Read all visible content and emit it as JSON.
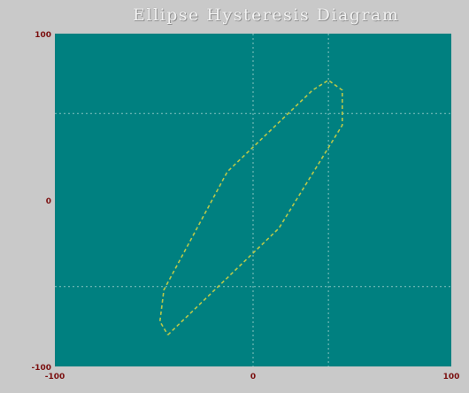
{
  "chart_data": {
    "type": "line",
    "title": "Ellipse Hysteresis Diagram",
    "xlim": [
      -100,
      100
    ],
    "ylim": [
      -100,
      100
    ],
    "x_ticks": [
      "-100",
      "0",
      "100"
    ],
    "y_ticks": [
      "100",
      "0",
      "-100"
    ],
    "grid": true,
    "background_color": "#008080",
    "line_color": "#b8c84a",
    "grid_color": "#a8d4d0",
    "series": [
      {
        "values": [
          {
            "x": -43,
            "y": -81
          },
          {
            "x": 13,
            "y": -17
          },
          {
            "x": 45,
            "y": 45
          },
          {
            "x": 45,
            "y": 66
          },
          {
            "x": 38,
            "y": 72
          },
          {
            "x": 30,
            "y": 66
          },
          {
            "x": -13,
            "y": 17
          },
          {
            "x": -45,
            "y": -54
          },
          {
            "x": -47,
            "y": -73
          },
          {
            "x": -43,
            "y": -81
          }
        ]
      }
    ]
  }
}
